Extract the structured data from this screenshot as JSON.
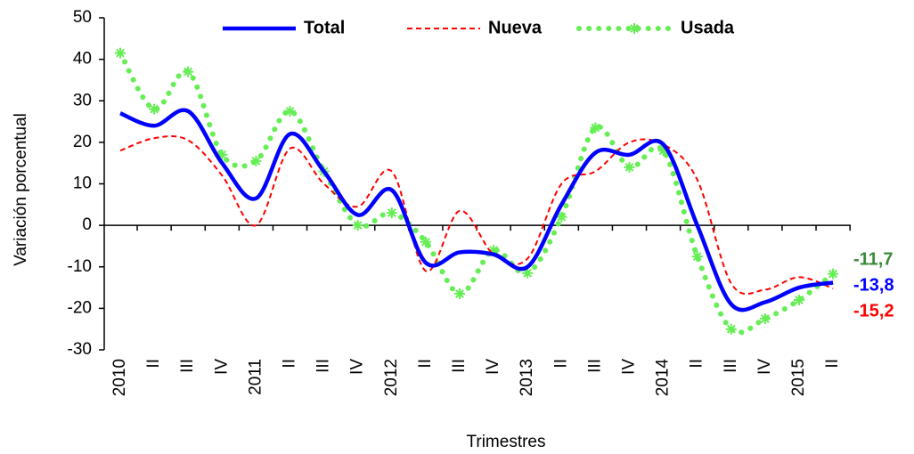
{
  "chart_data": {
    "type": "line",
    "x_label": "Trimestres",
    "y_label": "Variación porcentual",
    "categories": [
      "2010",
      "II",
      "III",
      "IV",
      "2011",
      "II",
      "III",
      "IV",
      "2012",
      "II",
      "III",
      "IV",
      "2013",
      "II",
      "III",
      "IV",
      "2014",
      "II",
      "III",
      "IV",
      "2015",
      "II"
    ],
    "ylim": [
      -30,
      50
    ],
    "yticks": [
      -30,
      -20,
      -10,
      0,
      10,
      20,
      30,
      40,
      50
    ],
    "grid": false,
    "smooth": true,
    "legend": "top",
    "series": [
      {
        "name": "Total",
        "color": "#0000ff",
        "label_color": "#0000ff",
        "style": "solid",
        "values": [
          27,
          24,
          27.5,
          15,
          6.5,
          22,
          13,
          2.5,
          8.5,
          -9,
          -6.5,
          -7,
          -10,
          5,
          17.5,
          17,
          19.5,
          0,
          -19,
          -18.5,
          -15,
          -13.8
        ],
        "value_labels": [
          null,
          null,
          null,
          null,
          null,
          null,
          null,
          null,
          null,
          null,
          null,
          null,
          null,
          null,
          null,
          null,
          null,
          null,
          null,
          null,
          null,
          "-13,8"
        ]
      },
      {
        "name": "Nueva",
        "color": "#ff0000",
        "label_color": "#ff0000",
        "style": "dashed",
        "values": [
          18,
          21,
          20.5,
          12,
          0,
          18.5,
          10,
          4.5,
          13,
          -11,
          3.5,
          -7,
          -8,
          10,
          13,
          20,
          19.5,
          11,
          -14,
          -15.5,
          -12.5,
          -15.2
        ],
        "value_labels": [
          null,
          null,
          null,
          null,
          null,
          null,
          null,
          null,
          null,
          null,
          null,
          null,
          null,
          null,
          null,
          null,
          null,
          null,
          null,
          null,
          null,
          "-15,2"
        ]
      },
      {
        "name": "Usada",
        "color": "#66ee55",
        "label_color": "#3a8a3a",
        "style": "dotted",
        "values": [
          41.5,
          28,
          37,
          17,
          15.5,
          27.5,
          13,
          0,
          3,
          -4,
          -16.5,
          -6,
          -11.5,
          2,
          23.5,
          14,
          18,
          -7.5,
          -25,
          -22.5,
          -18,
          -11.7
        ],
        "value_labels": [
          null,
          null,
          null,
          null,
          null,
          null,
          null,
          null,
          null,
          null,
          null,
          null,
          null,
          null,
          null,
          null,
          null,
          null,
          null,
          null,
          null,
          "-11,7"
        ]
      }
    ]
  }
}
